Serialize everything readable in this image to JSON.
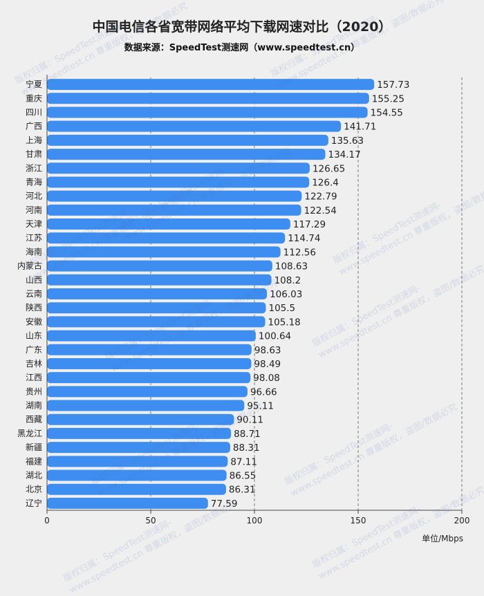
{
  "title": "中国电信各省宽带网络平均下载网速对比（2020）",
  "subtitle": "数据来源：SpeedTest测速网（www.speedtest.cn）",
  "unit_label": "单位/Mbps",
  "watermark": "版权归属：SpeedTest测速网-www.speedtest.cn 尊重版权，盗图/数据必究",
  "colors": {
    "bar": "#3d8ef0",
    "grid": "#7a7a7a",
    "text": "#222222"
  },
  "chart_data": {
    "type": "bar",
    "orientation": "horizontal",
    "categories": [
      "宁夏",
      "重庆",
      "四川",
      "广西",
      "上海",
      "甘肃",
      "浙江",
      "青海",
      "河北",
      "河南",
      "天津",
      "江苏",
      "海南",
      "内蒙古",
      "山西",
      "云南",
      "陕西",
      "安徽",
      "山东",
      "广东",
      "吉林",
      "江西",
      "贵州",
      "湖南",
      "西藏",
      "黑龙江",
      "新疆",
      "福建",
      "湖北",
      "北京",
      "辽宁"
    ],
    "values": [
      157.73,
      155.25,
      154.55,
      141.71,
      135.63,
      134.17,
      126.65,
      126.4,
      122.79,
      122.54,
      117.29,
      114.74,
      112.56,
      108.63,
      108.2,
      106.03,
      105.5,
      105.18,
      100.64,
      98.63,
      98.49,
      98.08,
      96.66,
      95.11,
      90.11,
      88.71,
      88.31,
      87.11,
      86.55,
      86.31,
      77.59
    ],
    "xlim": [
      0,
      200
    ],
    "xticks": [
      0,
      50,
      100,
      150,
      200
    ],
    "grid": "vertical dashed"
  }
}
